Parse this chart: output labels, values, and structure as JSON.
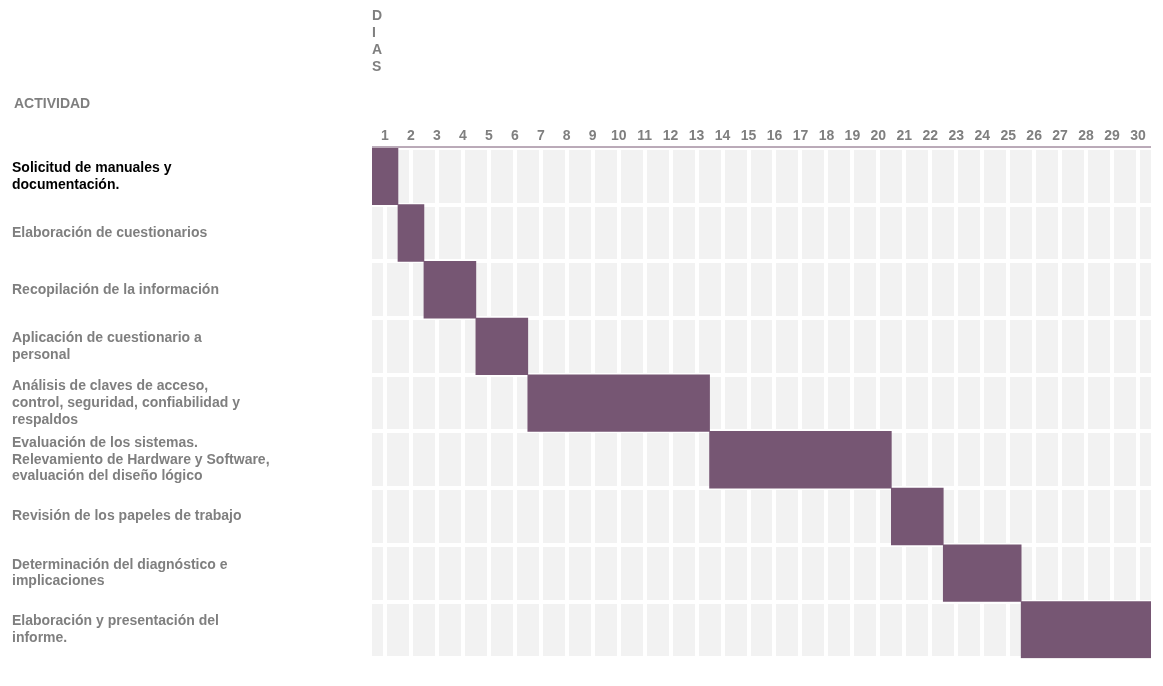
{
  "chart_data": {
    "type": "bar",
    "orientation": "horizontal",
    "xlabel": "DIAS",
    "ylabel": "ACTIVIDAD",
    "categories": [
      "Solicitud de manuales y documentación.",
      "Elaboración de cuestionarios",
      "Recopilación de la información",
      "Aplicación de cuestionario a personal",
      "Análisis de claves de acceso, control, seguridad, confiabilidad y respaldos",
      "Evaluación de los sistemas. Relevamiento de Hardware y Software, evaluación del diseño lógico",
      "Revisión de los papeles de trabajo",
      "Determinación del diagnóstico e implicaciones",
      "Elaboración y presentación del informe."
    ],
    "base": [
      0,
      1,
      2,
      4,
      6,
      13,
      20,
      22,
      25
    ],
    "values": [
      1,
      1,
      2,
      2,
      7,
      7,
      2,
      3,
      5
    ],
    "color": "#765673",
    "xlim": [
      0,
      30
    ],
    "xticks": [
      {
        "value": 0.5,
        "label": "1"
      },
      {
        "value": 1.5,
        "label": "2"
      },
      {
        "value": 2.5,
        "label": "3"
      },
      {
        "value": 3.5,
        "label": "4"
      },
      {
        "value": 4.5,
        "label": "5"
      },
      {
        "value": 5.5,
        "label": "6"
      },
      {
        "value": 6.5,
        "label": "7"
      },
      {
        "value": 7.5,
        "label": "8"
      },
      {
        "value": 8.5,
        "label": "9"
      },
      {
        "value": 9.5,
        "label": "10"
      },
      {
        "value": 10.5,
        "label": "11"
      },
      {
        "value": 11.5,
        "label": "12"
      },
      {
        "value": 12.5,
        "label": "13"
      },
      {
        "value": 13.5,
        "label": "14"
      },
      {
        "value": 14.5,
        "label": "15"
      },
      {
        "value": 15.5,
        "label": "16"
      },
      {
        "value": 16.5,
        "label": "17"
      },
      {
        "value": 17.5,
        "label": "18"
      },
      {
        "value": 18.5,
        "label": "19"
      },
      {
        "value": 19.5,
        "label": "20"
      },
      {
        "value": 20.5,
        "label": "21"
      },
      {
        "value": 21.5,
        "label": "22"
      },
      {
        "value": 22.5,
        "label": "23"
      },
      {
        "value": 23.5,
        "label": "24"
      },
      {
        "value": 24.5,
        "label": "25"
      },
      {
        "value": 25.5,
        "label": "26"
      },
      {
        "value": 26.5,
        "label": "27"
      },
      {
        "value": 27.5,
        "label": "28"
      },
      {
        "value": 28.5,
        "label": "29"
      },
      {
        "value": 29.5,
        "label": "30"
      }
    ],
    "grid": true
  }
}
